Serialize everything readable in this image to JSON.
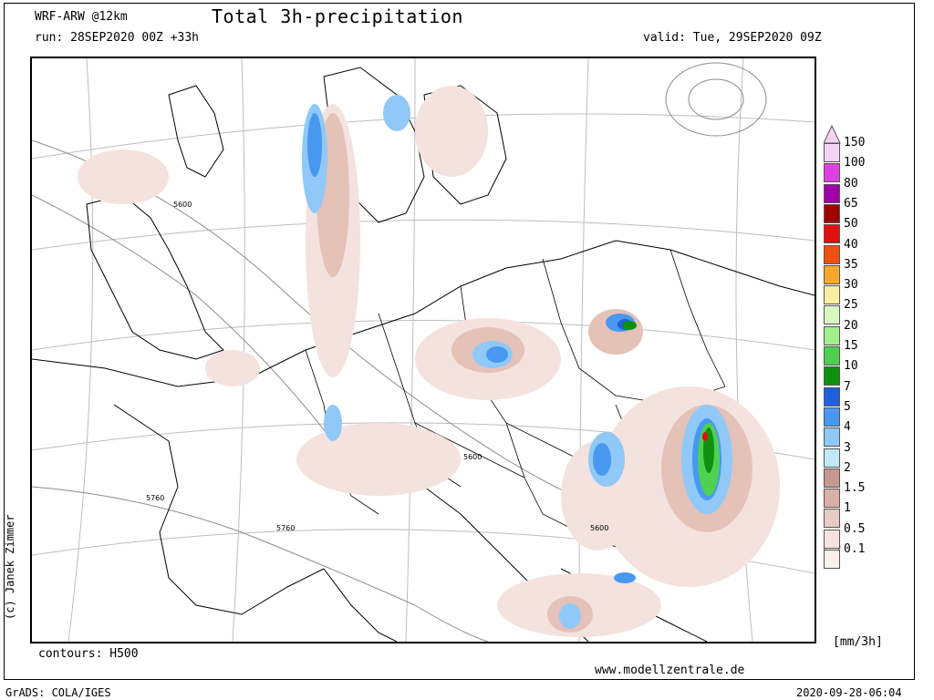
{
  "header": {
    "model": "WRF-ARW @12km",
    "title": "Total 3h-precipitation",
    "run": "run: 28SEP2020 00Z +33h",
    "valid": "valid: Tue, 29SEP2020 09Z"
  },
  "footer": {
    "contours": "contours: H500",
    "website": "www.modellzentrale.de",
    "software": "GrADS: COLA/IGES",
    "timestamp": "2020-09-28-06:04",
    "copyright": "(c) Janek Zimmer"
  },
  "legend": {
    "units": "[mm/3h]",
    "levels": [
      {
        "label": "150",
        "color": "#f8d4f4"
      },
      {
        "label": "100",
        "color": "#e040e0"
      },
      {
        "label": "80",
        "color": "#a000a8"
      },
      {
        "label": "65",
        "color": "#a00000"
      },
      {
        "label": "50",
        "color": "#e01010"
      },
      {
        "label": "40",
        "color": "#f05010"
      },
      {
        "label": "35",
        "color": "#f8a828"
      },
      {
        "label": "30",
        "color": "#f8f0a0"
      },
      {
        "label": "25",
        "color": "#d8f8c0"
      },
      {
        "label": "20",
        "color": "#a0f090"
      },
      {
        "label": "15",
        "color": "#50d050"
      },
      {
        "label": "10",
        "color": "#109010"
      },
      {
        "label": "7",
        "color": "#2060e0"
      },
      {
        "label": "5",
        "color": "#4898f0"
      },
      {
        "label": "4",
        "color": "#90c8f8"
      },
      {
        "label": "3",
        "color": "#c0e8f8"
      },
      {
        "label": "2",
        "color": "#c89890"
      },
      {
        "label": "1.5",
        "color": "#d8b0a8"
      },
      {
        "label": "1",
        "color": "#e8ccc4"
      },
      {
        "label": "0.5",
        "color": "#f4e2de"
      },
      {
        "label": "0.1",
        "color": "#fbf0ee"
      }
    ]
  },
  "map": {
    "contour_labels": [
      "5600",
      "5760",
      "5760",
      "5600",
      "5600"
    ],
    "colors": {
      "light": "#f4e2de",
      "tan": "#e4c2b8",
      "brown": "#c89890",
      "lightblue": "#90c8f8",
      "blue": "#4898f0",
      "darkblue": "#2060e0",
      "green": "#50d050",
      "darkgreen": "#109010",
      "red": "#e01010"
    }
  }
}
